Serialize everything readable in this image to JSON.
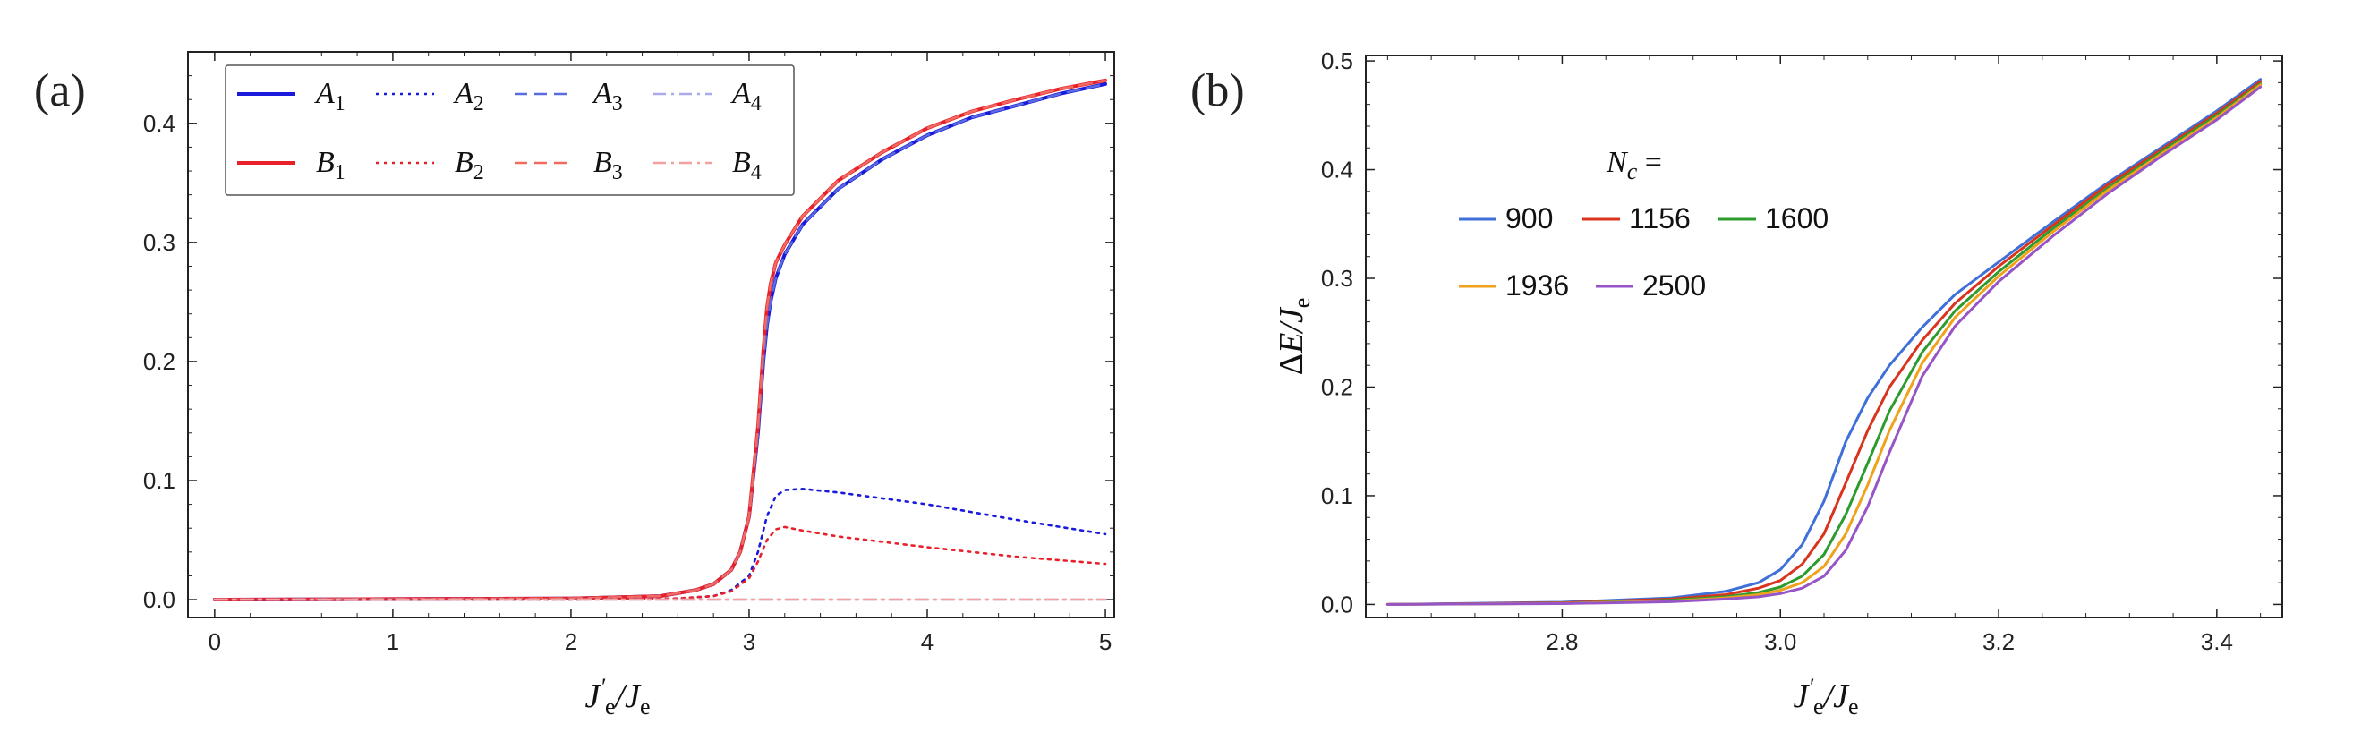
{
  "chart_data": [
    {
      "panel_label": "(a)",
      "type": "line",
      "xlabel": "J'e/Je",
      "xlim": [
        -0.15,
        5.05
      ],
      "ylim": [
        -0.015,
        0.46
      ],
      "xticks": [
        0,
        1,
        2,
        3,
        4,
        5
      ],
      "yticks": [
        0.0,
        0.1,
        0.2,
        0.3,
        0.4
      ],
      "xtick_labels": [
        "0",
        "1",
        "2",
        "3",
        "4",
        "5"
      ],
      "ytick_labels": [
        "0.0",
        "0.1",
        "0.2",
        "0.3",
        "0.4"
      ],
      "legend": {
        "placement": "top-left",
        "entries": [
          {
            "label": "A1",
            "sym": "A",
            "sub": "1",
            "color": "#1a1adb",
            "style": "solid"
          },
          {
            "label": "A2",
            "sym": "A",
            "sub": "2",
            "color": "#1a1adb",
            "style": "dotted"
          },
          {
            "label": "A3",
            "sym": "A",
            "sub": "3",
            "color": "#5a6be0",
            "style": "dashed"
          },
          {
            "label": "A4",
            "sym": "A",
            "sub": "4",
            "color": "#a9a9ec",
            "style": "dashdot"
          },
          {
            "label": "B1",
            "sym": "B",
            "sub": "1",
            "color": "#e8202a",
            "style": "solid"
          },
          {
            "label": "B2",
            "sym": "B",
            "sub": "2",
            "color": "#e8202a",
            "style": "dotted"
          },
          {
            "label": "B3",
            "sym": "B",
            "sub": "3",
            "color": "#f26a5f",
            "style": "dashed"
          },
          {
            "label": "B4",
            "sym": "B",
            "sub": "4",
            "color": "#f5a0a0",
            "style": "dashdot"
          }
        ]
      },
      "series": [
        {
          "name": "A1",
          "color": "#1a1adb",
          "style": "solid",
          "x": [
            0,
            1,
            2,
            2.5,
            2.7,
            2.8,
            2.9,
            2.95,
            3.0,
            3.05,
            3.08,
            3.1,
            3.12,
            3.15,
            3.2,
            3.3,
            3.5,
            3.75,
            4.0,
            4.25,
            4.5,
            4.75,
            5.0
          ],
          "y": [
            0.0,
            0.0005,
            0.001,
            0.003,
            0.008,
            0.013,
            0.025,
            0.04,
            0.07,
            0.14,
            0.2,
            0.23,
            0.25,
            0.27,
            0.29,
            0.315,
            0.345,
            0.37,
            0.39,
            0.405,
            0.415,
            0.425,
            0.433
          ]
        },
        {
          "name": "B1",
          "color": "#e8202a",
          "style": "solid",
          "x": [
            0,
            1,
            2,
            2.5,
            2.7,
            2.8,
            2.9,
            2.95,
            3.0,
            3.05,
            3.08,
            3.1,
            3.12,
            3.15,
            3.2,
            3.3,
            3.5,
            3.75,
            4.0,
            4.25,
            4.5,
            4.75,
            5.0
          ],
          "y": [
            0.0,
            0.0005,
            0.001,
            0.003,
            0.008,
            0.013,
            0.025,
            0.04,
            0.07,
            0.145,
            0.21,
            0.245,
            0.265,
            0.283,
            0.298,
            0.322,
            0.352,
            0.376,
            0.396,
            0.41,
            0.42,
            0.429,
            0.436
          ]
        },
        {
          "name": "A3",
          "color": "#5a6be0",
          "style": "dashed",
          "x": [
            0,
            1,
            2,
            2.5,
            2.7,
            2.8,
            2.9,
            2.95,
            3.0,
            3.05,
            3.08,
            3.1,
            3.12,
            3.15,
            3.2,
            3.3,
            3.5,
            3.75,
            4.0,
            4.25,
            4.5,
            4.75,
            5.0
          ],
          "y": [
            0.0,
            0.0005,
            0.001,
            0.003,
            0.008,
            0.013,
            0.025,
            0.04,
            0.07,
            0.14,
            0.2,
            0.23,
            0.25,
            0.27,
            0.29,
            0.315,
            0.345,
            0.37,
            0.39,
            0.405,
            0.415,
            0.425,
            0.433
          ]
        },
        {
          "name": "B3",
          "color": "#f26a5f",
          "style": "dashed",
          "x": [
            0,
            1,
            2,
            2.5,
            2.7,
            2.8,
            2.9,
            2.95,
            3.0,
            3.05,
            3.08,
            3.1,
            3.12,
            3.15,
            3.2,
            3.3,
            3.5,
            3.75,
            4.0,
            4.25,
            4.5,
            4.75,
            5.0
          ],
          "y": [
            0.0,
            0.0005,
            0.001,
            0.003,
            0.008,
            0.013,
            0.025,
            0.04,
            0.07,
            0.145,
            0.21,
            0.245,
            0.265,
            0.283,
            0.298,
            0.322,
            0.352,
            0.376,
            0.396,
            0.41,
            0.42,
            0.429,
            0.436
          ]
        },
        {
          "name": "A2",
          "color": "#1a1adb",
          "style": "dotted",
          "x": [
            0,
            2,
            2.6,
            2.8,
            2.9,
            3.0,
            3.05,
            3.1,
            3.15,
            3.2,
            3.3,
            3.5,
            4.0,
            4.5,
            5.0
          ],
          "y": [
            0.0,
            0.0,
            0.001,
            0.003,
            0.008,
            0.02,
            0.04,
            0.07,
            0.087,
            0.092,
            0.093,
            0.09,
            0.08,
            0.067,
            0.055
          ]
        },
        {
          "name": "B2",
          "color": "#e8202a",
          "style": "dotted",
          "x": [
            0,
            2,
            2.6,
            2.8,
            2.9,
            3.0,
            3.05,
            3.1,
            3.15,
            3.2,
            3.3,
            3.5,
            4.0,
            4.5,
            5.0
          ],
          "y": [
            0.0,
            0.0,
            0.001,
            0.003,
            0.007,
            0.018,
            0.032,
            0.05,
            0.059,
            0.061,
            0.058,
            0.053,
            0.044,
            0.036,
            0.03
          ]
        },
        {
          "name": "A4",
          "color": "#a9a9ec",
          "style": "dashdot",
          "x": [
            0,
            5
          ],
          "y": [
            0.0,
            0.0
          ]
        },
        {
          "name": "B4",
          "color": "#f5a0a0",
          "style": "dashdot",
          "x": [
            0,
            5
          ],
          "y": [
            0.0,
            0.0
          ]
        }
      ]
    },
    {
      "panel_label": "(b)",
      "type": "line",
      "xlabel": "J'e/Je",
      "ylabel": "ΔE/Je",
      "xlim": [
        2.62,
        3.46
      ],
      "ylim": [
        -0.012,
        0.505
      ],
      "xticks": [
        2.8,
        3.0,
        3.2,
        3.4
      ],
      "yticks": [
        0.0,
        0.1,
        0.2,
        0.3,
        0.4,
        0.5
      ],
      "xtick_labels": [
        "2.8",
        "3.0",
        "3.2",
        "3.4"
      ],
      "ytick_labels": [
        "0.0",
        "0.1",
        "0.2",
        "0.3",
        "0.4",
        "0.5"
      ],
      "legend": {
        "title": "N_c =",
        "title_sym": "N",
        "title_sub": "c",
        "title_eq": "=",
        "placement": "top-left",
        "entries": [
          {
            "label": "900",
            "color": "#3f6fd8"
          },
          {
            "label": "1156",
            "color": "#d9341e"
          },
          {
            "label": "1600",
            "color": "#2e9b2e"
          },
          {
            "label": "1936",
            "color": "#f0a21c"
          },
          {
            "label": "2500",
            "color": "#9654c6"
          }
        ]
      },
      "series": [
        {
          "name": "900",
          "color": "#3f6fd8",
          "x": [
            2.64,
            2.8,
            2.9,
            2.95,
            2.98,
            3.0,
            3.02,
            3.04,
            3.06,
            3.08,
            3.1,
            3.13,
            3.16,
            3.2,
            3.25,
            3.3,
            3.35,
            3.4,
            3.44
          ],
          "y": [
            0.0,
            0.002,
            0.006,
            0.012,
            0.02,
            0.032,
            0.055,
            0.095,
            0.15,
            0.19,
            0.22,
            0.255,
            0.285,
            0.315,
            0.352,
            0.388,
            0.421,
            0.454,
            0.483
          ]
        },
        {
          "name": "1156",
          "color": "#d9341e",
          "x": [
            2.64,
            2.8,
            2.9,
            2.95,
            2.98,
            3.0,
            3.02,
            3.04,
            3.06,
            3.08,
            3.1,
            3.13,
            3.16,
            3.2,
            3.25,
            3.3,
            3.35,
            3.4,
            3.44
          ],
          "y": [
            0.0,
            0.0015,
            0.005,
            0.009,
            0.015,
            0.022,
            0.037,
            0.065,
            0.112,
            0.16,
            0.2,
            0.243,
            0.277,
            0.311,
            0.349,
            0.386,
            0.419,
            0.452,
            0.481
          ]
        },
        {
          "name": "1600",
          "color": "#2e9b2e",
          "x": [
            2.64,
            2.8,
            2.9,
            2.95,
            2.98,
            3.0,
            3.02,
            3.04,
            3.06,
            3.08,
            3.1,
            3.13,
            3.16,
            3.2,
            3.25,
            3.3,
            3.35,
            3.4,
            3.44
          ],
          "y": [
            0.0,
            0.001,
            0.004,
            0.007,
            0.011,
            0.016,
            0.026,
            0.046,
            0.083,
            0.13,
            0.178,
            0.232,
            0.27,
            0.306,
            0.346,
            0.383,
            0.417,
            0.45,
            0.479
          ]
        },
        {
          "name": "1936",
          "color": "#f0a21c",
          "x": [
            2.64,
            2.8,
            2.9,
            2.95,
            2.98,
            3.0,
            3.02,
            3.04,
            3.06,
            3.08,
            3.1,
            3.13,
            3.16,
            3.2,
            3.25,
            3.3,
            3.35,
            3.4,
            3.44
          ],
          "y": [
            0.0,
            0.001,
            0.003,
            0.006,
            0.009,
            0.013,
            0.02,
            0.035,
            0.065,
            0.11,
            0.16,
            0.222,
            0.264,
            0.302,
            0.343,
            0.381,
            0.415,
            0.448,
            0.478
          ]
        },
        {
          "name": "2500",
          "color": "#9654c6",
          "x": [
            2.64,
            2.8,
            2.9,
            2.95,
            2.98,
            3.0,
            3.02,
            3.04,
            3.06,
            3.08,
            3.1,
            3.13,
            3.16,
            3.2,
            3.25,
            3.3,
            3.35,
            3.4,
            3.44
          ],
          "y": [
            0.0,
            0.0008,
            0.0025,
            0.005,
            0.007,
            0.01,
            0.015,
            0.026,
            0.05,
            0.09,
            0.14,
            0.21,
            0.256,
            0.297,
            0.339,
            0.378,
            0.413,
            0.446,
            0.476
          ]
        }
      ]
    }
  ]
}
